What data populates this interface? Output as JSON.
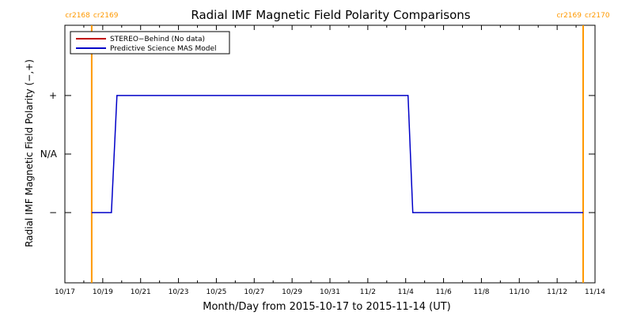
{
  "chart_data": {
    "type": "line",
    "title": "Radial IMF Magnetic Field Polarity Comparisons",
    "xlabel": "Month/Day from 2015-10-17 to 2015-11-14 (UT)",
    "ylabel": "Radial IMF Magnetic Field Polarity (−,+)",
    "x_tick_labels": [
      "10/17",
      "10/19",
      "10/21",
      "10/23",
      "10/25",
      "10/27",
      "10/29",
      "10/31",
      "11/2",
      "11/4",
      "11/6",
      "11/8",
      "11/10",
      "11/12",
      "11/14"
    ],
    "x_tick_dates": [
      "2015-10-17",
      "2015-10-19",
      "2015-10-21",
      "2015-10-23",
      "2015-10-25",
      "2015-10-27",
      "2015-10-29",
      "2015-10-31",
      "2015-11-02",
      "2015-11-04",
      "2015-11-06",
      "2015-11-08",
      "2015-11-10",
      "2015-11-12",
      "2015-11-14"
    ],
    "xlim": [
      "2015-10-17T00:00",
      "2015-11-14T00:00"
    ],
    "y_categories": [
      "−",
      "N/A",
      "+"
    ],
    "y_tick_labels": [
      "−",
      "N/A",
      "+"
    ],
    "ylim": [
      -2.2,
      2.2
    ],
    "legend_position": "top-left",
    "grid": false,
    "rotation_markers": [
      {
        "date": "2015-10-18T10:00",
        "labels": [
          "cr2168",
          "cr2169"
        ]
      },
      {
        "date": "2015-11-14T00:00",
        "labels": [
          "cr2169",
          "cr2170"
        ]
      }
    ],
    "series": [
      {
        "name": "STEREO−Behind (No data)",
        "color": "#c00000",
        "points": []
      },
      {
        "name": "Predictive Science MAS Model",
        "color": "#0000c8",
        "points": [
          {
            "x": "2015-10-18T10:00",
            "y": "−"
          },
          {
            "x": "2015-10-19T11:00",
            "y": "−"
          },
          {
            "x": "2015-10-19T18:00",
            "y": "+"
          },
          {
            "x": "2015-11-04T03:00",
            "y": "+"
          },
          {
            "x": "2015-11-04T09:00",
            "y": "−"
          },
          {
            "x": "2015-11-14T00:00",
            "y": "−"
          }
        ]
      }
    ],
    "colors": {
      "axis": "#000000",
      "marker": "#ff9900"
    }
  }
}
